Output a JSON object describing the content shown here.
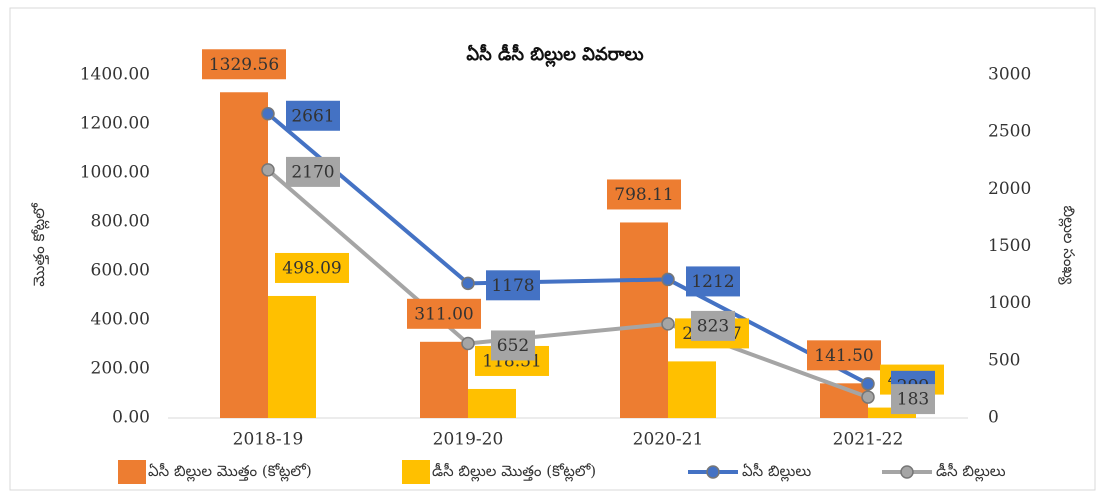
{
  "chart_data": {
    "type": "bar",
    "title": "ఏసీ డీసీ బిల్లుల వివరాలు",
    "y_label": "మొత్తం కోట్లలో",
    "y2_label": "బిల్లుల సంఖ్య",
    "categories": [
      "2018-19",
      "2019-20",
      "2020-21",
      "2021-22"
    ],
    "series": [
      {
        "name": "ఏసీ బిల్లుల మొత్తం (కోట్లలో)",
        "type": "bar",
        "color": "#ed7d31",
        "values": [
          1329.56,
          311.0,
          798.11,
          141.5
        ],
        "value_labels": [
          "1329.56",
          "311.00",
          "798.11",
          "141.50"
        ]
      },
      {
        "name": "డీసీ బిల్లుల మొత్తం (కోట్లలో)",
        "type": "bar",
        "color": "#ffc000",
        "values": [
          498.09,
          118.51,
          231.07,
          42.52
        ],
        "value_labels": [
          "498.09",
          "118.51",
          "231.07",
          "42.52"
        ]
      },
      {
        "name": "ఏసీ బిల్లులు",
        "type": "line",
        "axis": "y2",
        "color": "#4472c4",
        "values": [
          2661,
          1178,
          1212,
          299
        ]
      },
      {
        "name": "డీసీ బిల్లులు",
        "type": "line",
        "axis": "y2",
        "color": "#a5a5a5",
        "values": [
          2170,
          652,
          823,
          183
        ]
      }
    ],
    "ylim": [
      0,
      1400
    ],
    "yticks": [
      {
        "value": 0,
        "label": "0.00"
      },
      {
        "value": 200,
        "label": "200.00"
      },
      {
        "value": 400,
        "label": "400.00"
      },
      {
        "value": 600,
        "label": "600.00"
      },
      {
        "value": 800,
        "label": "800.00"
      },
      {
        "value": 1000,
        "label": "1000.00"
      },
      {
        "value": 1200,
        "label": "1200.00"
      },
      {
        "value": 1400,
        "label": "1400.00"
      }
    ],
    "y2lim": [
      0,
      3000
    ],
    "y2ticks": [
      0,
      500,
      1000,
      1500,
      2000,
      2500,
      3000
    ]
  }
}
